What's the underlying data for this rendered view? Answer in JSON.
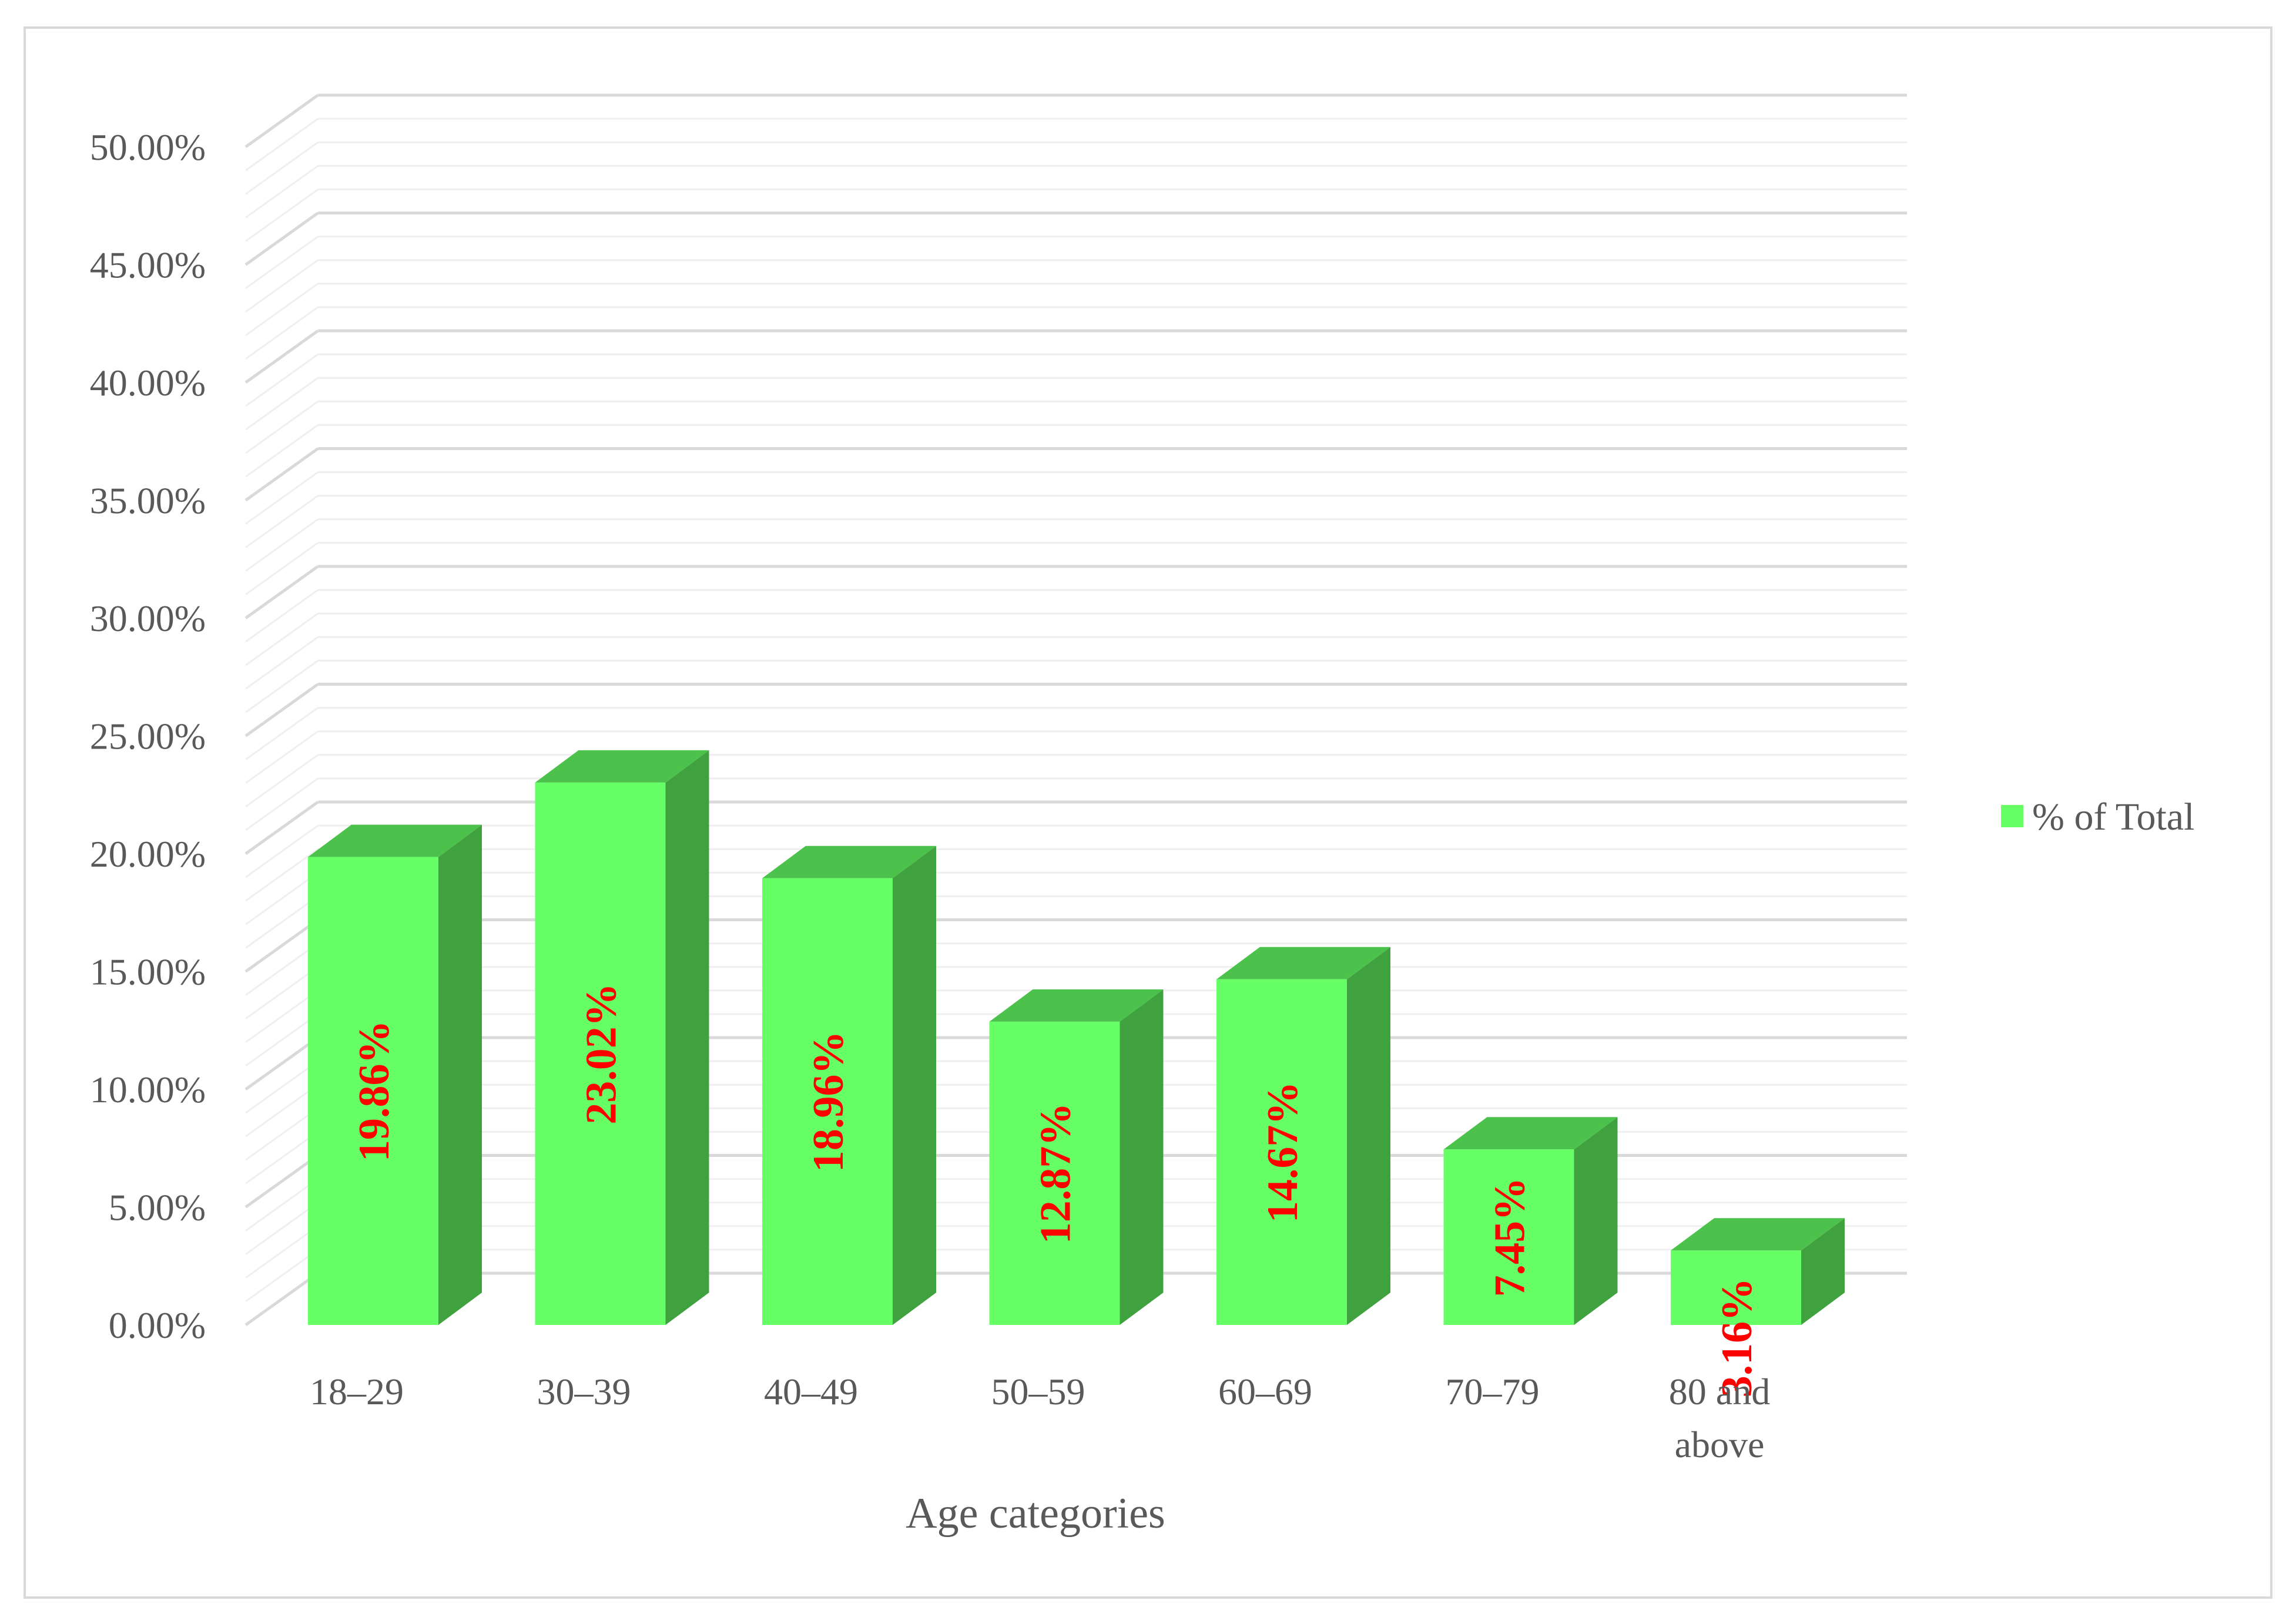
{
  "chart_data": {
    "type": "bar",
    "style": "3d-column",
    "categories": [
      "18–29",
      "30–39",
      "40–49",
      "50–59",
      "60–69",
      "70–79",
      "80 and above"
    ],
    "category_lines": [
      [
        "18–29"
      ],
      [
        "30–39"
      ],
      [
        "40–49"
      ],
      [
        "50–59"
      ],
      [
        "60–69"
      ],
      [
        "70–79"
      ],
      [
        "80 and",
        "above"
      ]
    ],
    "series": [
      {
        "name": "% of Total",
        "values": [
          19.86,
          23.02,
          18.96,
          12.87,
          14.67,
          7.45,
          3.16
        ],
        "labels": [
          "19.86%",
          "23.02%",
          "18.96%",
          "12.87%",
          "14.67%",
          "7.45%",
          "3.16%"
        ]
      }
    ],
    "title": "",
    "xlabel": "Age categories",
    "ylabel": "",
    "ylim": [
      0,
      50
    ],
    "yticks": [
      "0.00%",
      "5.00%",
      "10.00%",
      "15.00%",
      "20.00%",
      "25.00%",
      "30.00%",
      "35.00%",
      "40.00%",
      "45.00%",
      "50.00%"
    ],
    "grid": true,
    "legend": "right",
    "data_label_orientation": "vertical",
    "colors": {
      "bar_front": "#66ff66",
      "bar_top": "#4cc24c",
      "bar_side": "#3fa23f",
      "data_label": "#ff0000",
      "text": "#595959",
      "grid_major": "#d9d9d9",
      "grid_minor": "#efefef",
      "frame": "#d9d9d9"
    }
  }
}
